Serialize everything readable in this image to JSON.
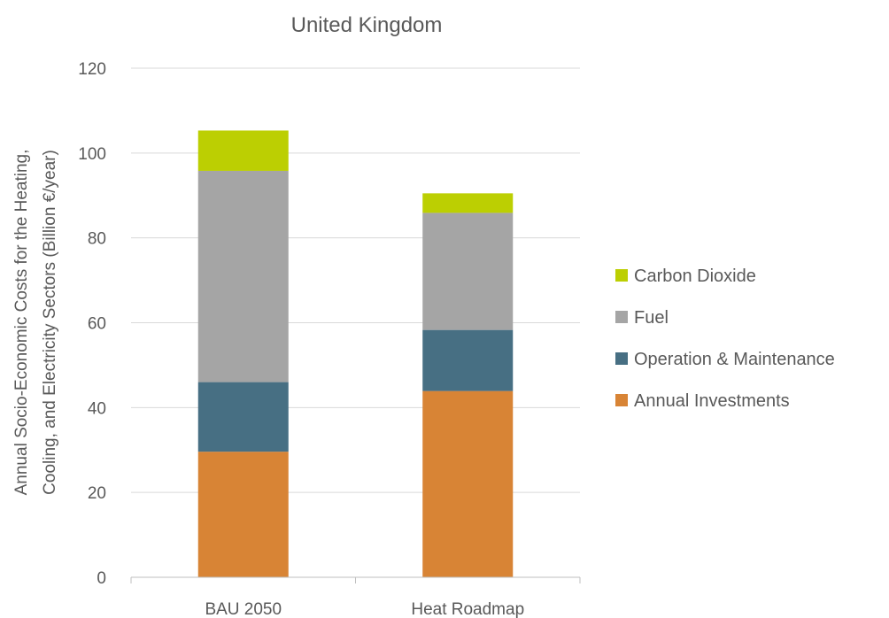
{
  "chart_data": {
    "type": "bar",
    "stacked": true,
    "title": "United Kingdom",
    "xlabel": "",
    "ylabel": [
      "Annual Socio-Economic Costs for the Heating,",
      "Cooling, and Electricity Sectors (Billion €/year)"
    ],
    "ylim": [
      0,
      120
    ],
    "yticks": [
      0,
      20,
      40,
      60,
      80,
      100,
      120
    ],
    "categories": [
      "BAU 2050",
      "Heat Roadmap"
    ],
    "grid": true,
    "legend_position": "right",
    "series": [
      {
        "name": "Annual Investments",
        "values": [
          29.6,
          43.9
        ],
        "color": "#d88435"
      },
      {
        "name": "Operation & Maintenance",
        "values": [
          16.4,
          14.4
        ],
        "color": "#476f83"
      },
      {
        "name": "Fuel",
        "values": [
          49.8,
          27.6
        ],
        "color": "#a5a5a5"
      },
      {
        "name": "Carbon Dioxide",
        "values": [
          9.5,
          4.6
        ],
        "color": "#bccf02"
      }
    ]
  }
}
